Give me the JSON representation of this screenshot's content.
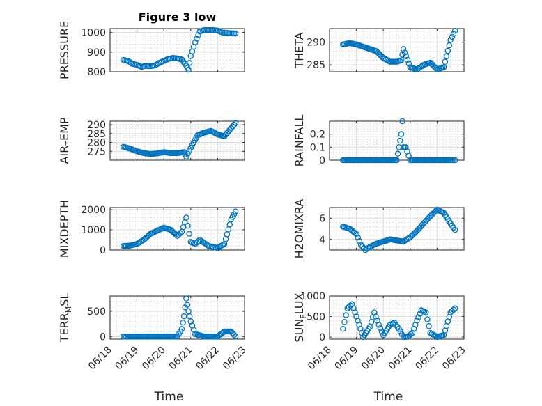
{
  "figure": {
    "title": "Figure 3 low",
    "xlabel": "Time",
    "x_ticks": [
      "06/18",
      "06/19",
      "06/20",
      "06/21",
      "06/22",
      "06/23"
    ],
    "marker_color": "#0072BD"
  },
  "chart_data": [
    {
      "type": "scatter",
      "ylabel": "PRESSURE",
      "ylim": [
        800,
        1020
      ],
      "yticks": [
        800,
        900,
        1000
      ],
      "x_range": [
        "06/18",
        "06/23"
      ],
      "grid": "on",
      "x": [
        "06/18 12:00",
        "06/18 16:00",
        "06/18 20:00",
        "06/19 00:00",
        "06/19 04:00",
        "06/19 08:00",
        "06/19 12:00",
        "06/19 16:00",
        "06/19 20:00",
        "06/20 00:00",
        "06/20 04:00",
        "06/20 08:00",
        "06/20 12:00",
        "06/20 16:00",
        "06/20 20:00",
        "06/20 22:00",
        "06/21 00:00",
        "06/21 04:00",
        "06/21 08:00",
        "06/21 12:00",
        "06/21 16:00",
        "06/21 20:00",
        "06/22 00:00",
        "06/22 04:00",
        "06/22 08:00",
        "06/22 12:00",
        "06/22 16:00"
      ],
      "values": [
        860,
        855,
        840,
        835,
        825,
        830,
        828,
        832,
        845,
        855,
        865,
        870,
        868,
        862,
        830,
        810,
        880,
        950,
        1005,
        1012,
        1012,
        1012,
        1010,
        1000,
        998,
        996,
        995
      ]
    },
    {
      "type": "scatter",
      "ylabel": "THETA",
      "ylim": [
        283.5,
        293
      ],
      "yticks": [
        285,
        290
      ],
      "x_range": [
        "06/18",
        "06/23"
      ],
      "grid": "on",
      "x": [
        "06/18 12:00",
        "06/18 18:00",
        "06/19 00:00",
        "06/19 06:00",
        "06/19 12:00",
        "06/19 18:00",
        "06/20 00:00",
        "06/20 06:00",
        "06/20 12:00",
        "06/20 16:00",
        "06/20 18:00",
        "06/21 00:00",
        "06/21 06:00",
        "06/21 12:00",
        "06/21 18:00",
        "06/22 00:00",
        "06/22 06:00",
        "06/22 12:00",
        "06/22 16:00"
      ],
      "values": [
        289.5,
        289.8,
        289.5,
        289.0,
        288.5,
        288.0,
        286.5,
        285.7,
        285.7,
        286.0,
        288.5,
        284.5,
        284.0,
        285.0,
        285.5,
        284.0,
        284.5,
        290.5,
        292.5
      ]
    },
    {
      "type": "scatter",
      "ylabel": "AIR_TEMP",
      "ylim": [
        270,
        292
      ],
      "yticks": [
        275,
        280,
        285,
        290
      ],
      "x_range": [
        "06/18",
        "06/23"
      ],
      "grid": "on",
      "x": [
        "06/18 12:00",
        "06/18 18:00",
        "06/19 00:00",
        "06/19 06:00",
        "06/19 12:00",
        "06/19 18:00",
        "06/20 00:00",
        "06/20 06:00",
        "06/20 12:00",
        "06/20 18:00",
        "06/20 20:00",
        "06/21 00:00",
        "06/21 06:00",
        "06/21 12:00",
        "06/21 18:00",
        "06/22 00:00",
        "06/22 06:00",
        "06/22 12:00",
        "06/22 16:00"
      ],
      "values": [
        277.5,
        276.5,
        275.0,
        274.0,
        273.5,
        273.8,
        274.5,
        274.0,
        274.0,
        274.5,
        272.0,
        277.0,
        284.0,
        285.5,
        286.5,
        284.5,
        283.5,
        288.0,
        291.0
      ]
    },
    {
      "type": "scatter",
      "ylabel": "RAINFALL",
      "ylim": [
        0,
        0.3
      ],
      "yticks": [
        0,
        0.1,
        0.2
      ],
      "x_range": [
        "06/18",
        "06/23"
      ],
      "grid": "on",
      "x": [
        "06/18 12:00",
        "06/19 00:00",
        "06/19 12:00",
        "06/20 00:00",
        "06/20 12:00",
        "06/20 14:00",
        "06/20 16:00",
        "06/20 17:00",
        "06/20 18:00",
        "06/20 20:00",
        "06/21 00:00",
        "06/21 12:00",
        "06/22 00:00",
        "06/22 12:00",
        "06/22 16:00"
      ],
      "values": [
        0,
        0,
        0,
        0,
        0,
        0.1,
        0.2,
        0.3,
        0.1,
        0.1,
        0,
        0,
        0,
        0,
        0
      ]
    },
    {
      "type": "scatter",
      "ylabel": "MIXDEPTH",
      "ylim": [
        0,
        2100
      ],
      "yticks": [
        0,
        1000,
        2000
      ],
      "x_range": [
        "06/18",
        "06/23"
      ],
      "grid": "on",
      "x": [
        "06/18 12:00",
        "06/18 18:00",
        "06/19 00:00",
        "06/19 06:00",
        "06/19 12:00",
        "06/19 18:00",
        "06/20 00:00",
        "06/20 06:00",
        "06/20 12:00",
        "06/20 16:00",
        "06/20 20:00",
        "06/21 00:00",
        "06/21 04:00",
        "06/21 08:00",
        "06/21 12:00",
        "06/21 16:00",
        "06/21 20:00",
        "06/22 00:00",
        "06/22 06:00",
        "06/22 12:00",
        "06/22 16:00"
      ],
      "values": [
        200,
        220,
        300,
        500,
        800,
        950,
        1100,
        1000,
        700,
        900,
        1600,
        400,
        300,
        500,
        350,
        200,
        150,
        100,
        300,
        1500,
        1900
      ]
    },
    {
      "type": "scatter",
      "ylabel": "H2OMIXRA",
      "ylim": [
        3,
        7
      ],
      "yticks": [
        4,
        6
      ],
      "x_range": [
        "06/18",
        "06/23"
      ],
      "grid": "on",
      "x": [
        "06/18 12:00",
        "06/18 18:00",
        "06/19 00:00",
        "06/19 04:00",
        "06/19 08:00",
        "06/19 12:00",
        "06/19 18:00",
        "06/20 00:00",
        "06/20 06:00",
        "06/20 12:00",
        "06/20 18:00",
        "06/21 00:00",
        "06/21 06:00",
        "06/21 12:00",
        "06/21 18:00",
        "06/22 00:00",
        "06/22 06:00",
        "06/22 12:00",
        "06/22 16:00"
      ],
      "values": [
        5.2,
        5.0,
        4.5,
        3.5,
        3.0,
        3.3,
        3.6,
        3.8,
        4.0,
        3.9,
        3.8,
        4.2,
        4.8,
        5.5,
        6.2,
        6.8,
        6.5,
        5.5,
        4.9
      ]
    },
    {
      "type": "scatter",
      "ylabel": "TERR_MSL",
      "ylim": [
        -50,
        800
      ],
      "yticks": [
        0,
        500
      ],
      "x_range": [
        "06/18",
        "06/23"
      ],
      "grid": "on",
      "x": [
        "06/18 12:00",
        "06/19 00:00",
        "06/19 12:00",
        "06/20 00:00",
        "06/20 12:00",
        "06/20 16:00",
        "06/20 18:00",
        "06/20 20:00",
        "06/20 22:00",
        "06/21 00:00",
        "06/21 04:00",
        "06/21 12:00",
        "06/22 00:00",
        "06/22 06:00",
        "06/22 12:00",
        "06/22 16:00"
      ],
      "values": [
        0,
        0,
        0,
        0,
        0,
        150,
        400,
        750,
        500,
        300,
        50,
        0,
        0,
        100,
        100,
        0
      ]
    },
    {
      "type": "scatter",
      "ylabel": "SUN_FLUX",
      "ylim": [
        -50,
        1000
      ],
      "yticks": [
        0,
        500,
        1000
      ],
      "x_range": [
        "06/18",
        "06/23"
      ],
      "grid": "on",
      "x": [
        "06/18 12:00",
        "06/18 16:00",
        "06/18 20:00",
        "06/19 00:00",
        "06/19 06:00",
        "06/19 12:00",
        "06/19 16:00",
        "06/19 20:00",
        "06/20 00:00",
        "06/20 06:00",
        "06/20 10:00",
        "06/20 14:00",
        "06/20 18:00",
        "06/20 22:00",
        "06/21 02:00",
        "06/21 06:00",
        "06/21 10:00",
        "06/21 14:00",
        "06/21 18:00",
        "06/22 00:00",
        "06/22 06:00",
        "06/22 12:00",
        "06/22 16:00"
      ],
      "values": [
        200,
        700,
        800,
        500,
        0,
        250,
        600,
        300,
        50,
        300,
        350,
        200,
        0,
        10,
        100,
        400,
        650,
        600,
        100,
        0,
        50,
        600,
        700
      ]
    }
  ]
}
